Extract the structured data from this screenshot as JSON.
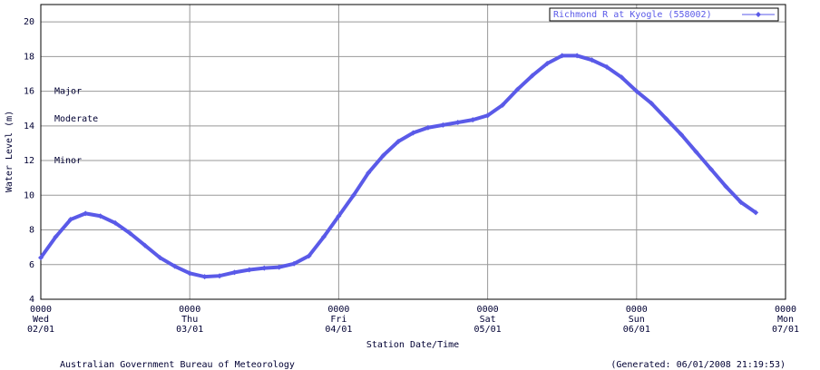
{
  "chart_data": {
    "type": "line",
    "xlabel": "Station Date/Time",
    "ylabel": "Water Level (m)",
    "footer_left": "Australian Government Bureau of Meteorology",
    "footer_right": "(Generated: 06/01/2008 21:19:53)",
    "xlim": [
      0,
      5
    ],
    "ylim": [
      4,
      21
    ],
    "xticks": [
      {
        "value": 0,
        "label": "0000\nWed\n02/01"
      },
      {
        "value": 1,
        "label": "0000\nThu\n03/01"
      },
      {
        "value": 2,
        "label": "0000\nFri\n04/01"
      },
      {
        "value": 3,
        "label": "0000\nSat\n05/01"
      },
      {
        "value": 4,
        "label": "0000\nSun\n06/01"
      },
      {
        "value": 5,
        "label": "0000\nMon\n07/01"
      }
    ],
    "yticks": [
      4,
      6,
      8,
      10,
      12,
      14,
      16,
      18,
      20
    ],
    "grid": true,
    "legend": "top-right",
    "annotations": [
      {
        "text": "Major",
        "y": 16
      },
      {
        "text": "Moderate",
        "y": 14.4
      },
      {
        "text": "Minor",
        "y": 12
      }
    ],
    "x": [
      0,
      0.1,
      0.2,
      0.3,
      0.4,
      0.5,
      0.6,
      0.7,
      0.8,
      0.9,
      1,
      1.1,
      1.2,
      1.3,
      1.4,
      1.5,
      1.6,
      1.7,
      1.8,
      1.9,
      2,
      2.1,
      2.2,
      2.3,
      2.4,
      2.5,
      2.6,
      2.7,
      2.8,
      2.9,
      3,
      3.1,
      3.2,
      3.3,
      3.4,
      3.5,
      3.6,
      3.7,
      3.8,
      3.9,
      4,
      4.1,
      4.2,
      4.3,
      4.4,
      4.5,
      4.6,
      4.7,
      4.8
    ],
    "series": [
      {
        "name": "Richmond R at Kyogle (558002)",
        "color": "#5a5ae8",
        "values": [
          6.4,
          7.6,
          8.6,
          8.95,
          8.8,
          8.4,
          7.8,
          7.1,
          6.4,
          5.9,
          5.5,
          5.3,
          5.35,
          5.55,
          5.7,
          5.8,
          5.85,
          6.05,
          6.5,
          7.6,
          8.8,
          10.0,
          11.3,
          12.3,
          13.1,
          13.6,
          13.9,
          14.05,
          14.2,
          14.35,
          14.6,
          15.2,
          16.1,
          16.9,
          17.6,
          18.05,
          18.05,
          17.8,
          17.4,
          16.8,
          16.0,
          15.3,
          14.4,
          13.5,
          12.5,
          11.5,
          10.5,
          9.6,
          9.0
        ]
      }
    ]
  }
}
